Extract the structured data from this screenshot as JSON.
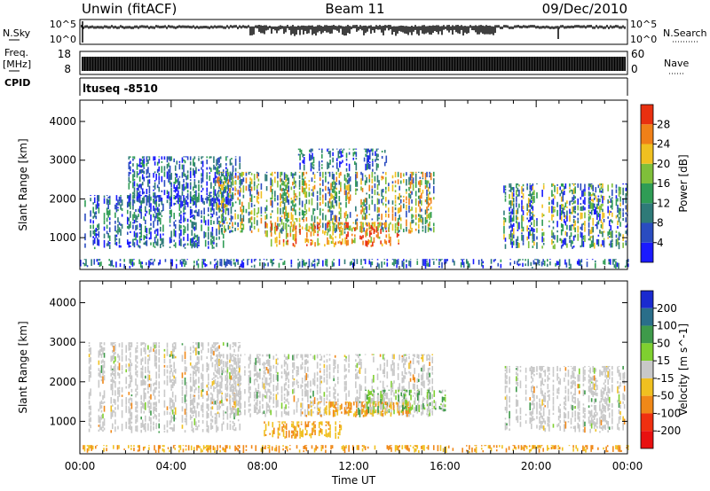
{
  "header": {
    "title": "Unwin (fitACF)",
    "beam": "Beam 11",
    "date": "09/Dec/2010"
  },
  "top_panels": {
    "nsky_label": "N.Sky",
    "nsearch_label": "N.Search",
    "nsky_ticks": [
      "10^5",
      "10^0"
    ],
    "nsearch_ticks": [
      "10^5",
      "10^0"
    ],
    "freq_label_1": "Freq.",
    "freq_label_2": "[MHz]",
    "freq_ticks": [
      "18",
      "8"
    ],
    "nave_label": "Nave",
    "nave_ticks": [
      "60",
      "0"
    ],
    "cpid_label": "CPID",
    "cpid_value": "ltuseq -8510"
  },
  "chart_data": [
    {
      "type": "heatmap",
      "title": "",
      "xlabel": "Time UT",
      "ylabel": "Slant Range [km]",
      "x_ticks": [
        "00:00",
        "04:00",
        "08:00",
        "12:00",
        "16:00",
        "20:00",
        "00:00"
      ],
      "y_ticks": [
        1000,
        2000,
        3000,
        4000
      ],
      "xlim_hours": [
        0,
        24
      ],
      "ylim_km": [
        180,
        4550
      ],
      "colorbar": {
        "label": "Power [dB]",
        "ticks": [
          "4",
          "8",
          "12",
          "16",
          "20",
          "24",
          "28"
        ],
        "colors": [
          "#1a1aff",
          "#2a4cc0",
          "#2e7a78",
          "#2f9c55",
          "#7fbf3a",
          "#f0c020",
          "#f08018",
          "#e83010"
        ]
      },
      "regions": [
        {
          "t0": 0.2,
          "t1": 6.5,
          "r0": 700,
          "r1": 2100,
          "value": "low"
        },
        {
          "t0": 2.0,
          "t1": 7.0,
          "r0": 1800,
          "r1": 3100,
          "value": "low"
        },
        {
          "t0": 6.0,
          "t1": 15.5,
          "r0": 1100,
          "r1": 2700,
          "value": "mid"
        },
        {
          "t0": 8.0,
          "t1": 14.0,
          "r0": 750,
          "r1": 1400,
          "value": "high"
        },
        {
          "t0": 9.5,
          "t1": 13.5,
          "r0": 2700,
          "r1": 3300,
          "value": "low"
        },
        {
          "t0": 18.5,
          "t1": 24.0,
          "r0": 700,
          "r1": 2400,
          "value": "mixed"
        },
        {
          "t0": 0.0,
          "t1": 24.0,
          "r0": 200,
          "r1": 450,
          "value": "low"
        }
      ]
    },
    {
      "type": "heatmap",
      "title": "",
      "xlabel": "Time UT",
      "ylabel": "Slant Range [km]",
      "x_ticks": [
        "00:00",
        "04:00",
        "08:00",
        "12:00",
        "16:00",
        "20:00",
        "00:00"
      ],
      "y_ticks": [
        1000,
        2000,
        3000,
        4000
      ],
      "xlim_hours": [
        0,
        24
      ],
      "ylim_km": [
        180,
        4550
      ],
      "colorbar": {
        "label": "Velocity [m s^-1]",
        "ticks": [
          "200",
          "100",
          "50",
          "15",
          "-15",
          "-50",
          "-100",
          "-200"
        ],
        "colors": [
          "#1a2ad0",
          "#2a6e8a",
          "#3e9a4a",
          "#7fd030",
          "#c8c8c8",
          "#f0c020",
          "#f08818",
          "#f03010",
          "#e81010"
        ]
      },
      "regions": [
        {
          "t0": 0.2,
          "t1": 7.0,
          "r0": 700,
          "r1": 3000,
          "value": "grey"
        },
        {
          "t0": 6.0,
          "t1": 15.5,
          "r0": 1100,
          "r1": 2700,
          "value": "grey"
        },
        {
          "t0": 8.0,
          "t1": 11.5,
          "r0": 550,
          "r1": 1000,
          "value": "neg"
        },
        {
          "t0": 10.0,
          "t1": 14.5,
          "r0": 1100,
          "r1": 1500,
          "value": "neg"
        },
        {
          "t0": 12.5,
          "t1": 16.0,
          "r0": 1200,
          "r1": 1800,
          "value": "pos"
        },
        {
          "t0": 18.5,
          "t1": 24.0,
          "r0": 700,
          "r1": 2400,
          "value": "grey"
        },
        {
          "t0": 0.0,
          "t1": 24.0,
          "r0": 200,
          "r1": 400,
          "value": "neg"
        }
      ]
    }
  ]
}
